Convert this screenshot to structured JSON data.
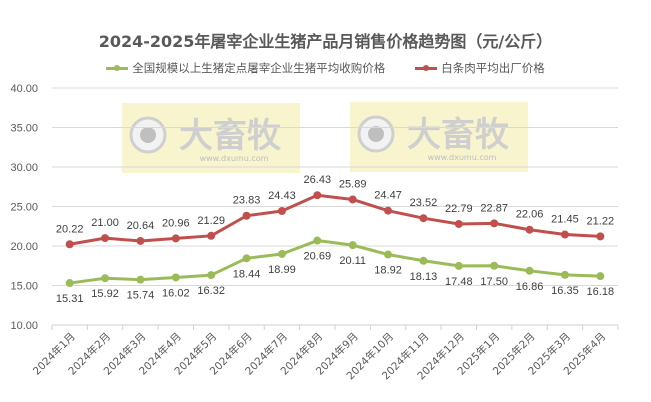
{
  "chart_data": {
    "type": "line",
    "title": "2024-2025年屠宰企业生猪产品月销售价格趋势图（元/公斤）",
    "xlabel": "",
    "ylabel": "",
    "ylim": [
      10,
      40
    ],
    "yticks": [
      "40.00",
      "35.00",
      "30.00",
      "25.00",
      "20.00",
      "15.00",
      "10.00"
    ],
    "grid": true,
    "legend_position": "top",
    "categories": [
      "2024年1月",
      "2024年2月",
      "2024年3月",
      "2024年4月",
      "2024年5月",
      "2024年6月",
      "2024年7月",
      "2024年8月",
      "2024年9月",
      "2024年10月",
      "2024年11月",
      "2024年12月",
      "2025年1月",
      "2025年2月",
      "2025年3月",
      "2025年4月"
    ],
    "series": [
      {
        "name": "全国规模以上生猪定点屠宰企业生猪平均收购价格",
        "color": "#9bbb59",
        "values": [
          15.31,
          15.92,
          15.74,
          16.02,
          16.32,
          18.44,
          18.99,
          20.69,
          20.11,
          18.92,
          18.13,
          17.48,
          17.5,
          16.86,
          16.35,
          16.18
        ],
        "labels": [
          "15.31",
          "15.92",
          "15.74",
          "16.02",
          "16.32",
          "18.44",
          "18.99",
          "20.69",
          "20.11",
          "18.92",
          "18.13",
          "17.48",
          "17.50",
          "16.86",
          "16.35",
          "16.18"
        ]
      },
      {
        "name": "白条肉平均出厂价格",
        "color": "#c0504d",
        "values": [
          20.22,
          21.0,
          20.64,
          20.96,
          21.29,
          23.83,
          24.43,
          26.43,
          25.89,
          24.47,
          23.52,
          22.79,
          22.87,
          22.06,
          21.45,
          21.22
        ],
        "labels": [
          "20.22",
          "21.00",
          "20.64",
          "20.96",
          "21.29",
          "23.83",
          "24.43",
          "26.43",
          "25.89",
          "24.47",
          "23.52",
          "22.79",
          "22.87",
          "22.06",
          "21.45",
          "21.22"
        ]
      }
    ]
  },
  "watermark": {
    "brand": "大畜牧",
    "url": "www.dxumu.com"
  }
}
